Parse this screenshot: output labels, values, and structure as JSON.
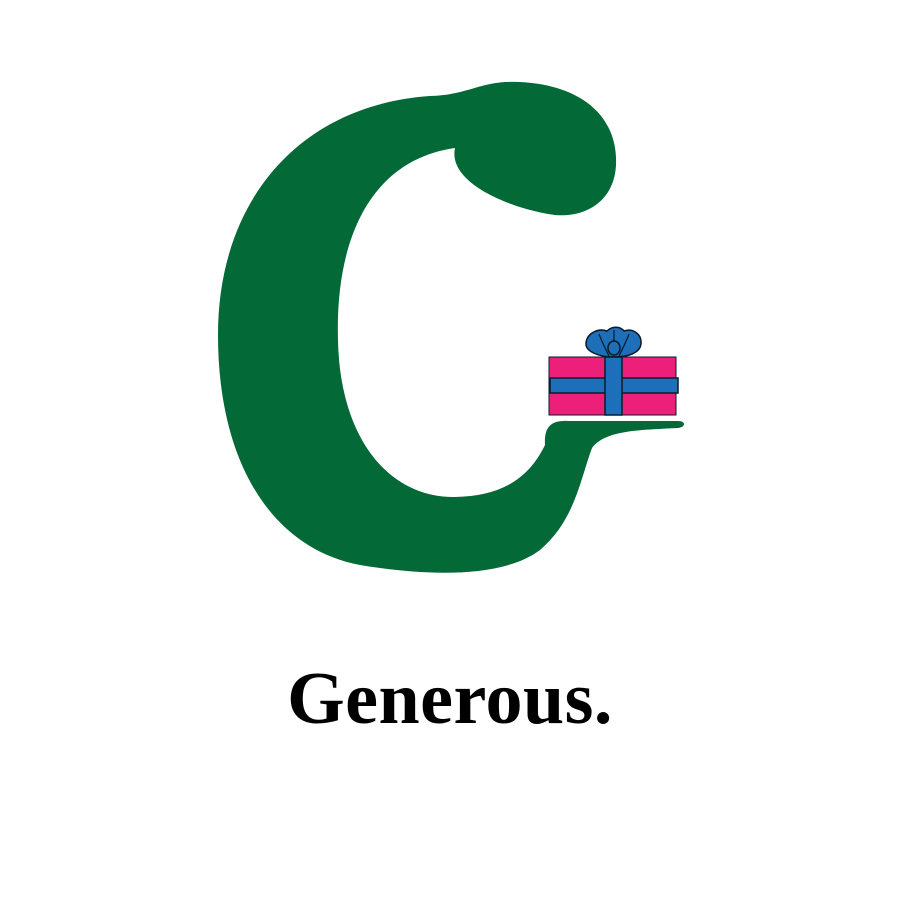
{
  "caption": "Generous.",
  "illustration": {
    "letter_icon": "letter-g-icon",
    "gift_icon": "gift-box-icon"
  },
  "colors": {
    "background": "#ffffff",
    "letter": "#036937",
    "gift_box": "#ec207b",
    "ribbon": "#1c6fb8",
    "outline": "#0a1a2a",
    "caption": "#000000"
  }
}
